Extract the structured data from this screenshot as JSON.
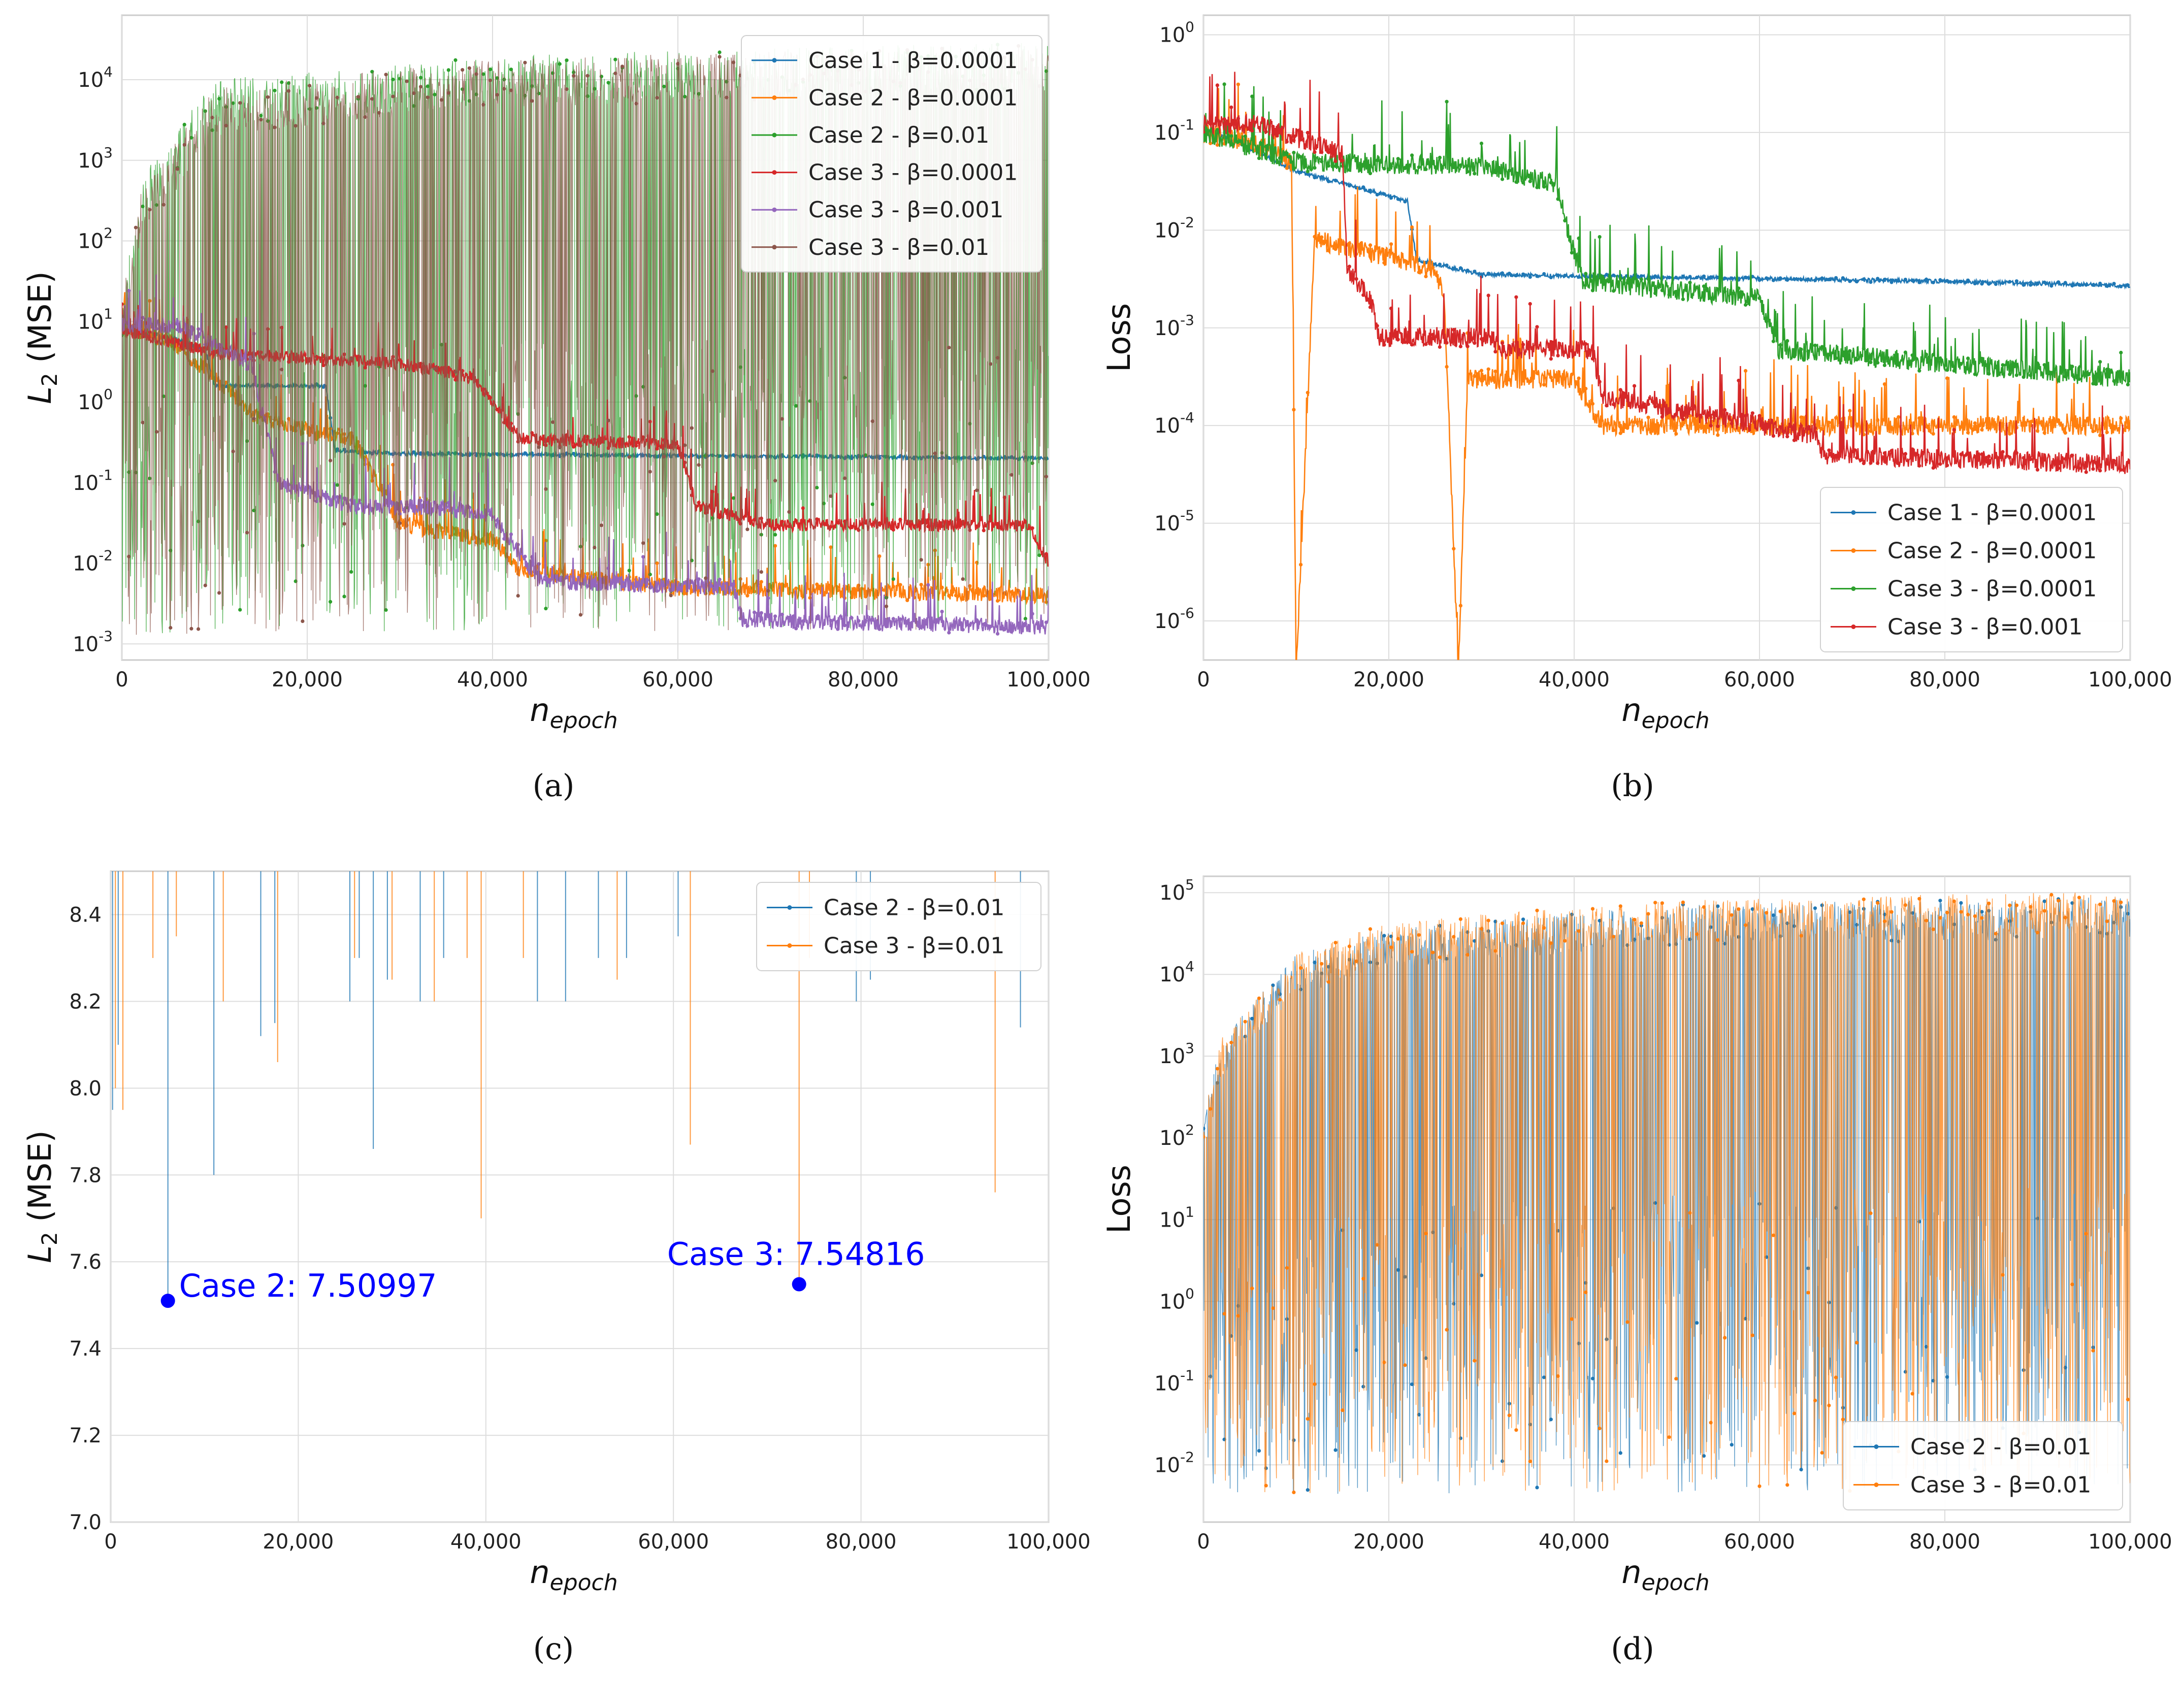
{
  "chart_data": [
    {
      "id": "a",
      "caption": "(a)",
      "type": "line",
      "yscale": "log",
      "xlabel": "n_epoch",
      "ylabel": "L_2 (MSE)",
      "xlim": [
        0,
        100000
      ],
      "ylim_log10": [
        -3.2,
        4.8
      ],
      "x_ticks": [
        0,
        20000,
        40000,
        60000,
        80000,
        100000
      ],
      "x_tick_labels": [
        "0",
        "20,000",
        "40,000",
        "60,000",
        "80,000",
        "100,000"
      ],
      "y_tick_exponents": [
        -3,
        -2,
        -1,
        0,
        1,
        2,
        3,
        4
      ],
      "legend_position": "top-right",
      "series": [
        {
          "name": "Case 1 - β=0.0001",
          "color": "#1f77b4",
          "noise": 0.02,
          "spikes": false,
          "x": [
            0,
            5000,
            9000,
            10000,
            22000,
            23000,
            30000,
            100000
          ],
          "y": [
            8,
            6.5,
            4.5,
            1.6,
            1.6,
            0.25,
            0.23,
            0.2
          ]
        },
        {
          "name": "Case 2 - β=0.0001",
          "color": "#ff7f0e",
          "noise": 0.1,
          "spikes": true,
          "x": [
            0,
            5000,
            10000,
            15000,
            25000,
            30000,
            40000,
            43000,
            60000,
            100000
          ],
          "y": [
            8,
            6,
            2,
            0.6,
            0.35,
            0.03,
            0.02,
            0.008,
            0.005,
            0.004
          ]
        },
        {
          "name": "Case 2 - β=0.01",
          "color": "#2ca02c",
          "noise": 0.6,
          "spikes": true,
          "chaotic": true,
          "x": [
            0,
            2000,
            10000,
            40000,
            100000
          ],
          "y": [
            10,
            300,
            5000,
            10000,
            15000
          ]
        },
        {
          "name": "Case 3 - β=0.0001",
          "color": "#d62728",
          "noise": 0.08,
          "spikes": true,
          "x": [
            0,
            10000,
            20000,
            30000,
            38000,
            43000,
            60000,
            62000,
            70000,
            98000,
            100000
          ],
          "y": [
            8,
            4,
            3.5,
            3,
            2.0,
            0.35,
            0.3,
            0.05,
            0.03,
            0.03,
            0.01
          ]
        },
        {
          "name": "Case 3 - β=0.001",
          "color": "#9467bd",
          "noise": 0.1,
          "spikes": true,
          "x": [
            0,
            6000,
            14000,
            15500,
            17000,
            25000,
            33000,
            40000,
            45000,
            66000,
            67000,
            100000
          ],
          "y": [
            9,
            9,
            3,
            0.5,
            0.1,
            0.05,
            0.05,
            0.04,
            0.006,
            0.005,
            0.002,
            0.0016
          ]
        },
        {
          "name": "Case 3 - β=0.01",
          "color": "#8c564b",
          "noise": 0.6,
          "spikes": true,
          "chaotic": true,
          "x": [
            0,
            2000,
            10000,
            40000,
            100000
          ],
          "y": [
            10,
            200,
            4000,
            9000,
            14000
          ]
        }
      ]
    },
    {
      "id": "b",
      "caption": "(b)",
      "type": "line",
      "yscale": "log",
      "xlabel": "n_epoch",
      "ylabel": "Loss",
      "xlim": [
        0,
        100000
      ],
      "ylim_log10": [
        -6.4,
        0.2
      ],
      "x_ticks": [
        0,
        20000,
        40000,
        60000,
        80000,
        100000
      ],
      "x_tick_labels": [
        "0",
        "20,000",
        "40,000",
        "60,000",
        "80,000",
        "100,000"
      ],
      "y_tick_exponents": [
        -6,
        -5,
        -4,
        -3,
        -2,
        -1,
        0
      ],
      "legend_position": "lower-right",
      "series": [
        {
          "name": "Case 1 - β=0.0001",
          "color": "#1f77b4",
          "noise": 0.02,
          "spikes": false,
          "x": [
            0,
            5000,
            10000,
            22000,
            23000,
            30000,
            80000,
            100000
          ],
          "y": [
            0.11,
            0.07,
            0.04,
            0.02,
            0.005,
            0.0035,
            0.003,
            0.0027
          ]
        },
        {
          "name": "Case 2 - β=0.0001",
          "color": "#ff7f0e",
          "noise": 0.1,
          "spikes": true,
          "x": [
            0,
            5000,
            9500,
            10000,
            12000,
            25000,
            26000,
            27500,
            28500,
            40000,
            43000,
            66000,
            100000
          ],
          "y": [
            0.1,
            0.08,
            0.05,
            3e-07,
            0.008,
            0.004,
            0.002,
            3e-07,
            0.0003,
            0.0003,
            0.0001,
            0.0001,
            0.0001
          ]
        },
        {
          "name": "Case 3 - β=0.0001",
          "color": "#2ca02c",
          "noise": 0.1,
          "spikes": true,
          "x": [
            0,
            10000,
            30000,
            38000,
            40000,
            41000,
            60000,
            62000,
            100000
          ],
          "y": [
            0.1,
            0.05,
            0.045,
            0.03,
            0.006,
            0.003,
            0.002,
            0.0006,
            0.0003
          ]
        },
        {
          "name": "Case 3 - β=0.001",
          "color": "#d62728",
          "noise": 0.1,
          "spikes": true,
          "x": [
            0,
            6000,
            15000,
            15500,
            18000,
            19000,
            31000,
            32000,
            42000,
            43000,
            66000,
            67000,
            100000
          ],
          "y": [
            0.12,
            0.12,
            0.06,
            0.004,
            0.002,
            0.0008,
            0.0008,
            0.0006,
            0.0006,
            0.0002,
            8e-05,
            5e-05,
            4e-05
          ]
        }
      ]
    },
    {
      "id": "c",
      "caption": "(c)",
      "type": "line",
      "yscale": "linear",
      "xlabel": "n_epoch",
      "ylabel": "L_2 (MSE)",
      "xlim": [
        0,
        100000
      ],
      "ylim": [
        7.0,
        8.5
      ],
      "x_ticks": [
        0,
        20000,
        40000,
        60000,
        80000,
        100000
      ],
      "x_tick_labels": [
        "0",
        "20,000",
        "40,000",
        "60,000",
        "80,000",
        "100,000"
      ],
      "y_ticks": [
        7.0,
        7.2,
        7.4,
        7.6,
        7.8,
        8.0,
        8.2,
        8.4
      ],
      "y_tick_labels": [
        "7.0",
        "7.2",
        "7.4",
        "7.6",
        "7.8",
        "8.0",
        "8.2",
        "8.4"
      ],
      "legend_position": "top-right",
      "series": [
        {
          "name": "Case 2 - β=0.01",
          "color": "#1f77b4",
          "spike_x": [
            200,
            800,
            6100,
            11000,
            16000,
            17500,
            25500,
            26500,
            28000,
            29500,
            33000,
            35500,
            45500,
            48500,
            52000,
            55000,
            60500,
            79500,
            81000,
            97000
          ],
          "spike_min": [
            7.95,
            8.1,
            7.51,
            7.8,
            8.12,
            8.15,
            8.2,
            8.3,
            7.86,
            8.25,
            8.2,
            8.3,
            8.2,
            8.2,
            8.3,
            8.3,
            8.35,
            8.2,
            8.25,
            8.14
          ]
        },
        {
          "name": "Case 3 - β=0.01",
          "color": "#ff7f0e",
          "spike_x": [
            500,
            1300,
            4500,
            7000,
            12000,
            17800,
            26000,
            30000,
            34500,
            38000,
            39500,
            44000,
            54000,
            61800,
            73400,
            74500,
            94300
          ],
          "spike_min": [
            8.0,
            7.95,
            8.3,
            8.35,
            8.2,
            8.06,
            8.3,
            8.25,
            8.2,
            8.3,
            7.7,
            8.3,
            8.25,
            7.87,
            7.56,
            8.3,
            7.76
          ]
        }
      ],
      "annotations": [
        {
          "label": "Case 2: 7.50997",
          "x": 6100,
          "y": 7.50997,
          "color": "#0000ff"
        },
        {
          "label": "Case 3: 7.54816",
          "x": 73400,
          "y": 7.54816,
          "color": "#0000ff"
        }
      ]
    },
    {
      "id": "d",
      "caption": "(d)",
      "type": "line",
      "yscale": "log",
      "xlabel": "n_epoch",
      "ylabel": "Loss",
      "xlim": [
        0,
        100000
      ],
      "ylim_log10": [
        -2.7,
        5.2
      ],
      "x_ticks": [
        0,
        20000,
        40000,
        60000,
        80000,
        100000
      ],
      "x_tick_labels": [
        "0",
        "20,000",
        "40,000",
        "60,000",
        "80,000",
        "100,000"
      ],
      "y_tick_exponents": [
        -2,
        -1,
        0,
        1,
        2,
        3,
        4,
        5
      ],
      "legend_position": "lower-right",
      "series": [
        {
          "name": "Case 2 - β=0.01",
          "color": "#1f77b4",
          "noise": 0.5,
          "spikes": true,
          "chaotic": true,
          "x": [
            0,
            2000,
            10000,
            20000,
            50000,
            100000
          ],
          "y": [
            100,
            1000,
            10000,
            20000,
            40000,
            50000
          ]
        },
        {
          "name": "Case 3 - β=0.01",
          "color": "#ff7f0e",
          "noise": 0.5,
          "spikes": true,
          "chaotic": true,
          "x": [
            0,
            2000,
            10000,
            20000,
            50000,
            100000
          ],
          "y": [
            100,
            1000,
            10000,
            25000,
            45000,
            60000
          ]
        }
      ]
    }
  ]
}
